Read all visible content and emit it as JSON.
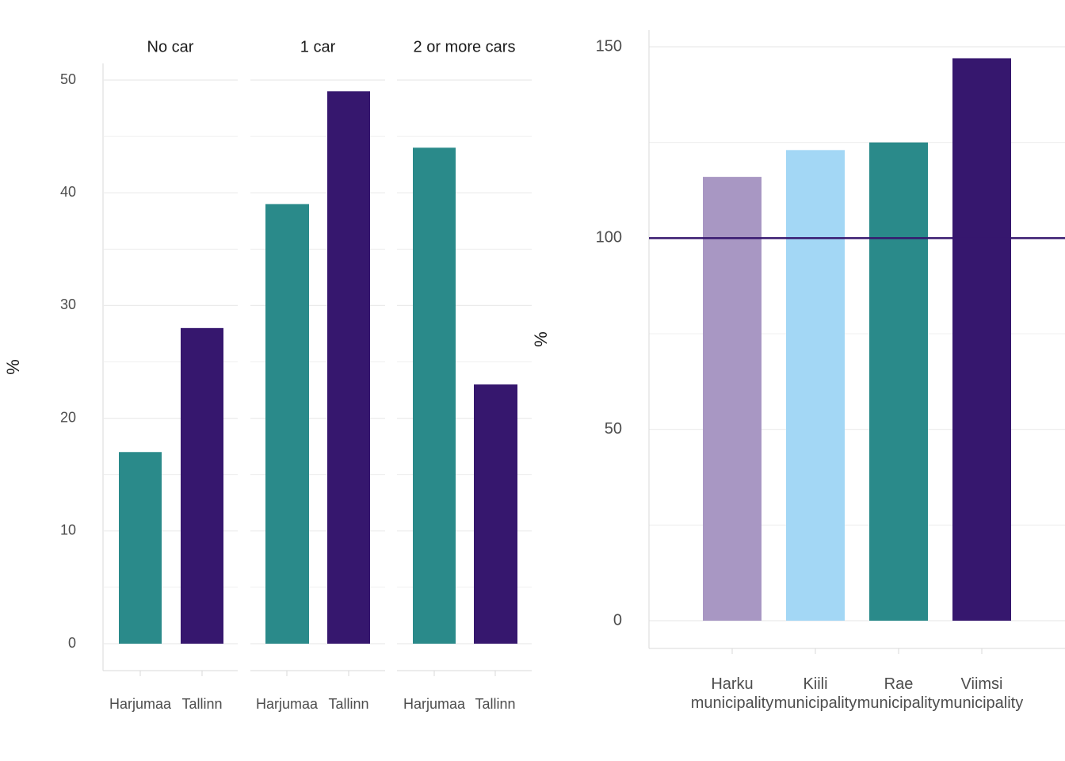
{
  "colors": {
    "Harjumaa": "#2a8a8a",
    "Tallinn": "#36176e",
    "Harku municipality": "#a897c3",
    "Kiili municipality": "#a3d7f5",
    "Rae municipality": "#2a8a8a",
    "Viimsi municipality": "#36176e",
    "reference_line": "#36176e",
    "grid": "#ebebeb",
    "axis": "#d9d9d9"
  },
  "chart_data": [
    {
      "type": "bar",
      "ylabel": "%",
      "ylim": [
        0,
        50
      ],
      "yticks": [
        "0",
        "10",
        "20",
        "30",
        "40",
        "50"
      ],
      "grid": true,
      "facets": [
        {
          "label": "No car",
          "categories": [
            "Harjumaa",
            "Tallinn"
          ],
          "values": [
            17,
            28
          ]
        },
        {
          "label": "1 car",
          "categories": [
            "Harjumaa",
            "Tallinn"
          ],
          "values": [
            39,
            49
          ]
        },
        {
          "label": "2 or more cars",
          "categories": [
            "Harjumaa",
            "Tallinn"
          ],
          "values": [
            44,
            23
          ]
        }
      ]
    },
    {
      "type": "bar",
      "ylabel": "%",
      "ylim": [
        0,
        150
      ],
      "yticks": [
        "0",
        "50",
        "100",
        "150"
      ],
      "grid": true,
      "reference_line": 100,
      "categories": [
        "Harku municipality",
        "Kiili municipality",
        "Rae municipality",
        "Viimsi municipality"
      ],
      "category_lines": [
        [
          "Harku",
          "municipality"
        ],
        [
          "Kiili",
          "municipality"
        ],
        [
          "Rae",
          "municipality"
        ],
        [
          "Viimsi",
          "municipality"
        ]
      ],
      "values": [
        116,
        123,
        125,
        147
      ]
    }
  ]
}
